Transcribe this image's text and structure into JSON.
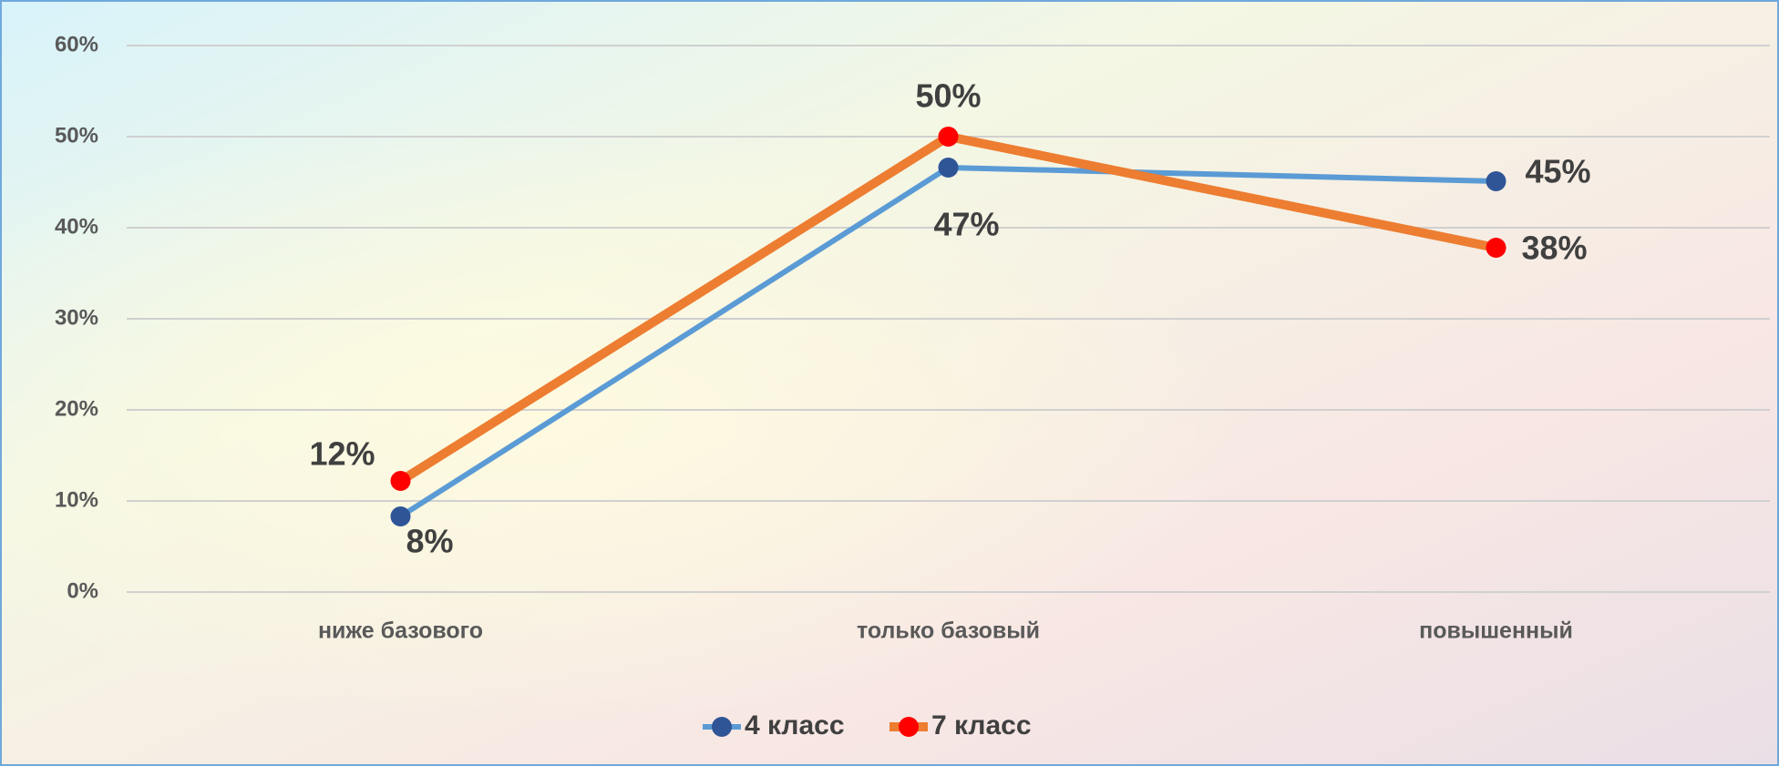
{
  "chart_data": {
    "type": "line",
    "categories": [
      "ниже базового",
      "только базовый",
      "повышенный"
    ],
    "series": [
      {
        "name": "4 класс",
        "color": "#5b9bd5",
        "marker_color": "#2f5597",
        "values": [
          8.3,
          46.6,
          45.1
        ],
        "value_labels": [
          "8%",
          "47%",
          "45%"
        ]
      },
      {
        "name": "7 класс",
        "color": "#ed7d31",
        "marker_color": "#ff0000",
        "values": [
          12.2,
          50,
          37.8
        ],
        "value_labels": [
          "12%",
          "50%",
          "38%"
        ]
      }
    ],
    "ylim": [
      0,
      60
    ],
    "yticks": [
      {
        "value": 0,
        "label": "0%"
      },
      {
        "value": 10,
        "label": "10%"
      },
      {
        "value": 20,
        "label": "20%"
      },
      {
        "value": 30,
        "label": "30%"
      },
      {
        "value": 40,
        "label": "40%"
      },
      {
        "value": 50,
        "label": "50%"
      },
      {
        "value": 60,
        "label": "60%"
      }
    ],
    "grid": true,
    "legend": "bottom"
  }
}
